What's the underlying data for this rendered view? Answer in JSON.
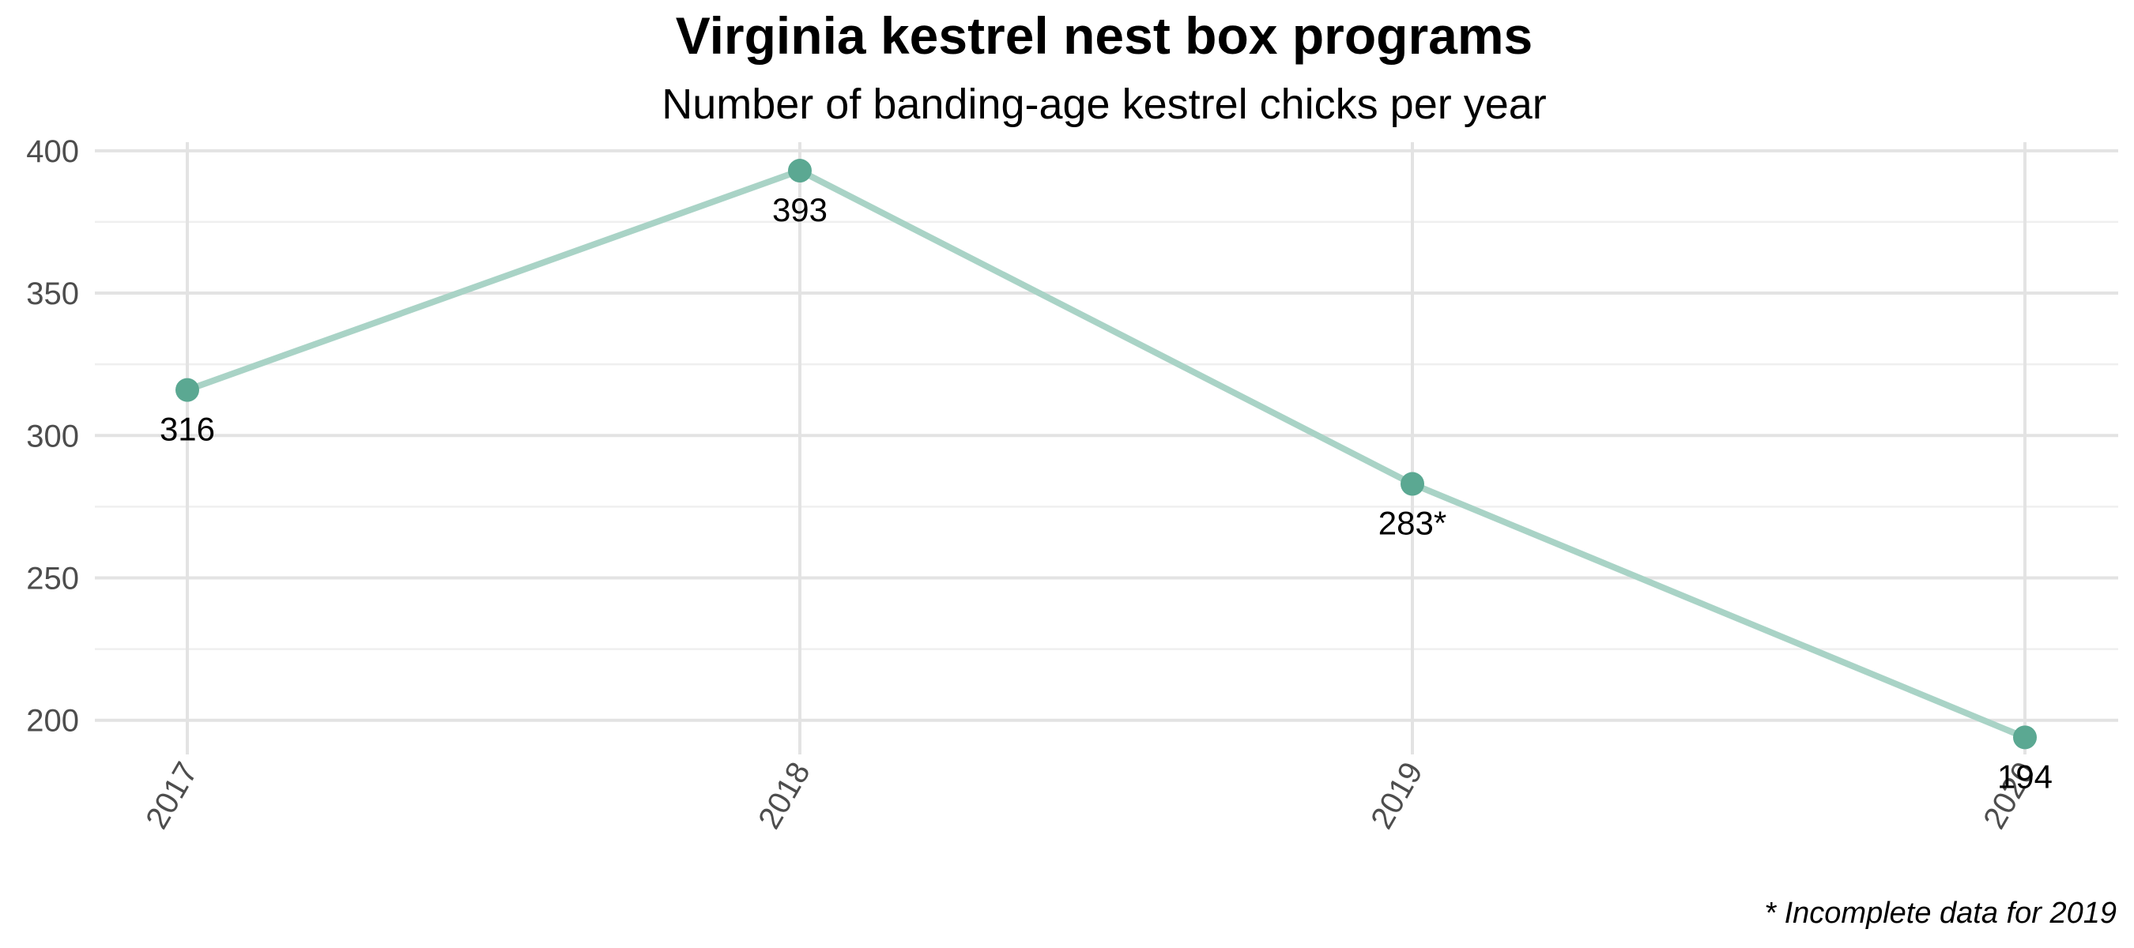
{
  "chart_data": {
    "type": "line",
    "title": "Virginia kestrel nest box programs",
    "subtitle": "Number of banding-age kestrel chicks per year",
    "caption": "* Incomplete data for 2019",
    "xlabel": "",
    "ylabel": "",
    "categories": [
      "2017",
      "2018",
      "2019",
      "2020"
    ],
    "series": [
      {
        "values": [
          316,
          393,
          283,
          194
        ],
        "labels": [
          "316",
          "393",
          "283*",
          "194"
        ]
      }
    ],
    "y_ticks": [
      200,
      250,
      300,
      350,
      400
    ],
    "ylim": [
      188,
      403
    ],
    "grid": true,
    "line_color": "#a9d3c6",
    "point_color": "#5ba892"
  }
}
